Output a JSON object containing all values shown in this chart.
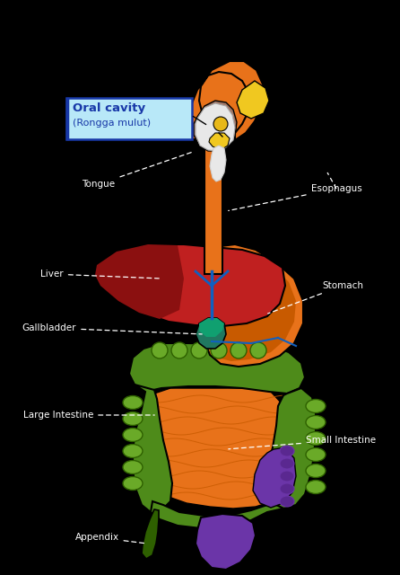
{
  "background_color": "#000000",
  "colors": {
    "orange": "#E8721A",
    "dark_orange": "#C85A00",
    "orange_med": "#D96818",
    "red": "#C02020",
    "dark_red": "#8B1010",
    "red_bright": "#D03030",
    "green": "#4E8B1A",
    "dark_green": "#2E6000",
    "green_light": "#6AAA28",
    "green_seg": "#3A7010",
    "purple": "#6B35A8",
    "purple_dark": "#5A2890",
    "blue": "#1060C0",
    "teal": "#207860",
    "teal_bright": "#10A070",
    "yellow": "#E8B818",
    "yellow_bright": "#F0C820",
    "brown": "#A07868",
    "brown_dark": "#806050",
    "white": "#FFFFFF",
    "off_white": "#E8E8E8",
    "light_blue_bg": "#B8E8F8",
    "label_blue": "#1838A8",
    "black": "#000000",
    "gray": "#888888"
  },
  "label_texts": {
    "oral_cavity_line1": "Oral cavity",
    "oral_cavity_line2": "(Rongga mulut)",
    "tongue": "Tongue",
    "esophagus": "Esophagus",
    "liver": "Liver",
    "gallbladder": "Gallbladder",
    "stomach": "Stomach",
    "large_intestine": "Large Intestine",
    "small_intestine": "Small Intestine",
    "appendix": "Appendix"
  },
  "dpi": 100,
  "figsize": [
    4.46,
    6.4
  ]
}
